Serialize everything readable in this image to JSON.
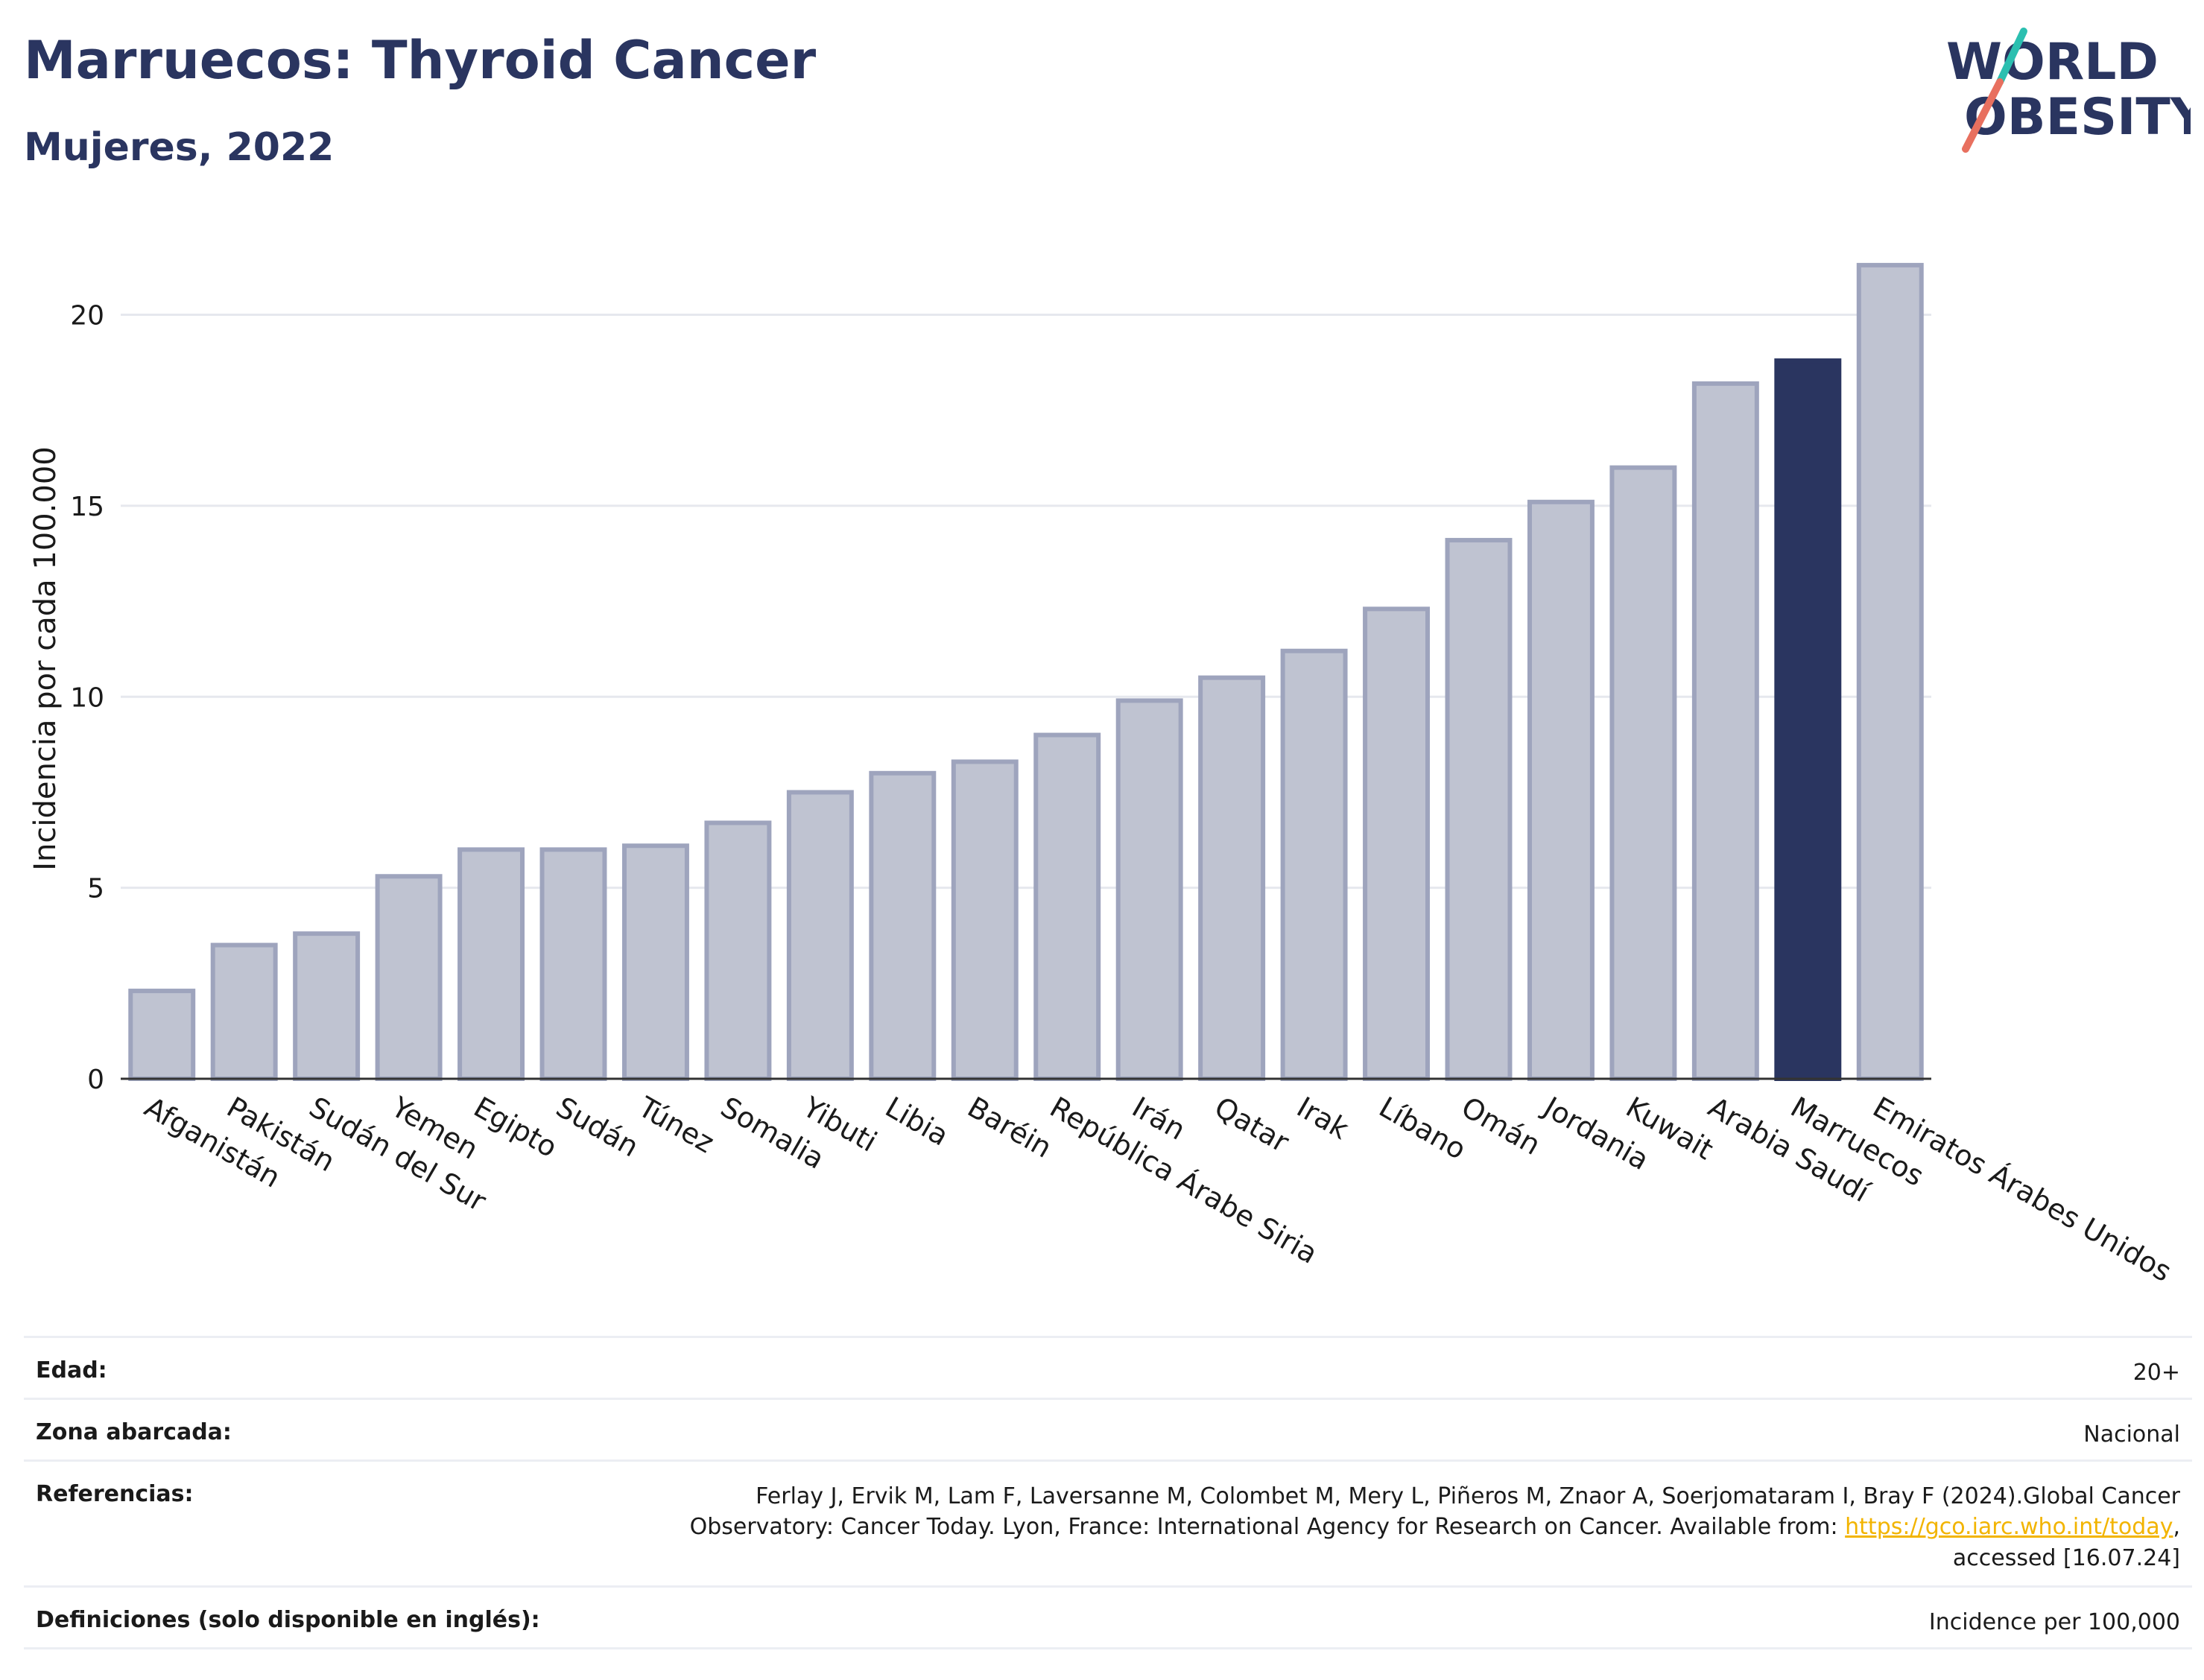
{
  "header": {
    "title": "Marruecos: Thyroid Cancer",
    "subtitle": "Mujeres, 2022"
  },
  "logo": {
    "line1": "WORLD",
    "line2": "OBESITY",
    "colors": {
      "text": "#2a3560",
      "slash_top": "#2bbfb0",
      "slash_bottom": "#e8705f"
    }
  },
  "chart_data": {
    "type": "bar",
    "ylabel": "Incidencia por cada 100.000",
    "xlabel": "",
    "ylim": [
      0,
      22
    ],
    "yticks": [
      0,
      5,
      10,
      15,
      20
    ],
    "grid": true,
    "highlight": "Marruecos",
    "colors": {
      "bar": "#bfc3d1",
      "bar_edge": "#9ea4bd",
      "highlight": "#2a3560",
      "grid": "#e6e8ee",
      "axis": "#333333"
    },
    "categories": [
      "Afganistán",
      "Pakistán",
      "Sudán del Sur",
      "Yemen",
      "Egipto",
      "Sudán",
      "Túnez",
      "Somalia",
      "Yibuti",
      "Libia",
      "Baréin",
      "República Árabe Siria",
      "Irán",
      "Qatar",
      "Irak",
      "Líbano",
      "Omán",
      "Jordania",
      "Kuwait",
      "Arabia Saudí",
      "Marruecos",
      "Emiratos Árabes Unidos"
    ],
    "values": [
      2.3,
      3.5,
      3.8,
      5.3,
      6.0,
      6.0,
      6.1,
      6.7,
      7.5,
      8.0,
      8.3,
      9.0,
      9.9,
      10.5,
      11.2,
      12.3,
      14.1,
      15.1,
      16.0,
      18.2,
      18.8,
      21.3
    ]
  },
  "meta": {
    "age_label": "Edad:",
    "age_value": "20+",
    "zone_label": "Zona abarcada:",
    "zone_value": "Nacional",
    "ref_label": "Referencias:",
    "ref_line1": "Ferlay J, Ervik M, Lam F, Laversanne M, Colombet M, Mery L, Piñeros M, Znaor A, Soerjomataram I, Bray F (2024).Global Cancer",
    "ref_line2_pre": "Observatory: Cancer Today. Lyon, France: International Agency for Research on Cancer. Available from: ",
    "ref_link": "https://gco.iarc.who.int/today",
    "ref_line2_post": ",",
    "ref_line3": "accessed [16.07.24]",
    "def_label": "Definiciones (solo disponible en inglés):",
    "def_value": "Incidence per 100,000"
  }
}
